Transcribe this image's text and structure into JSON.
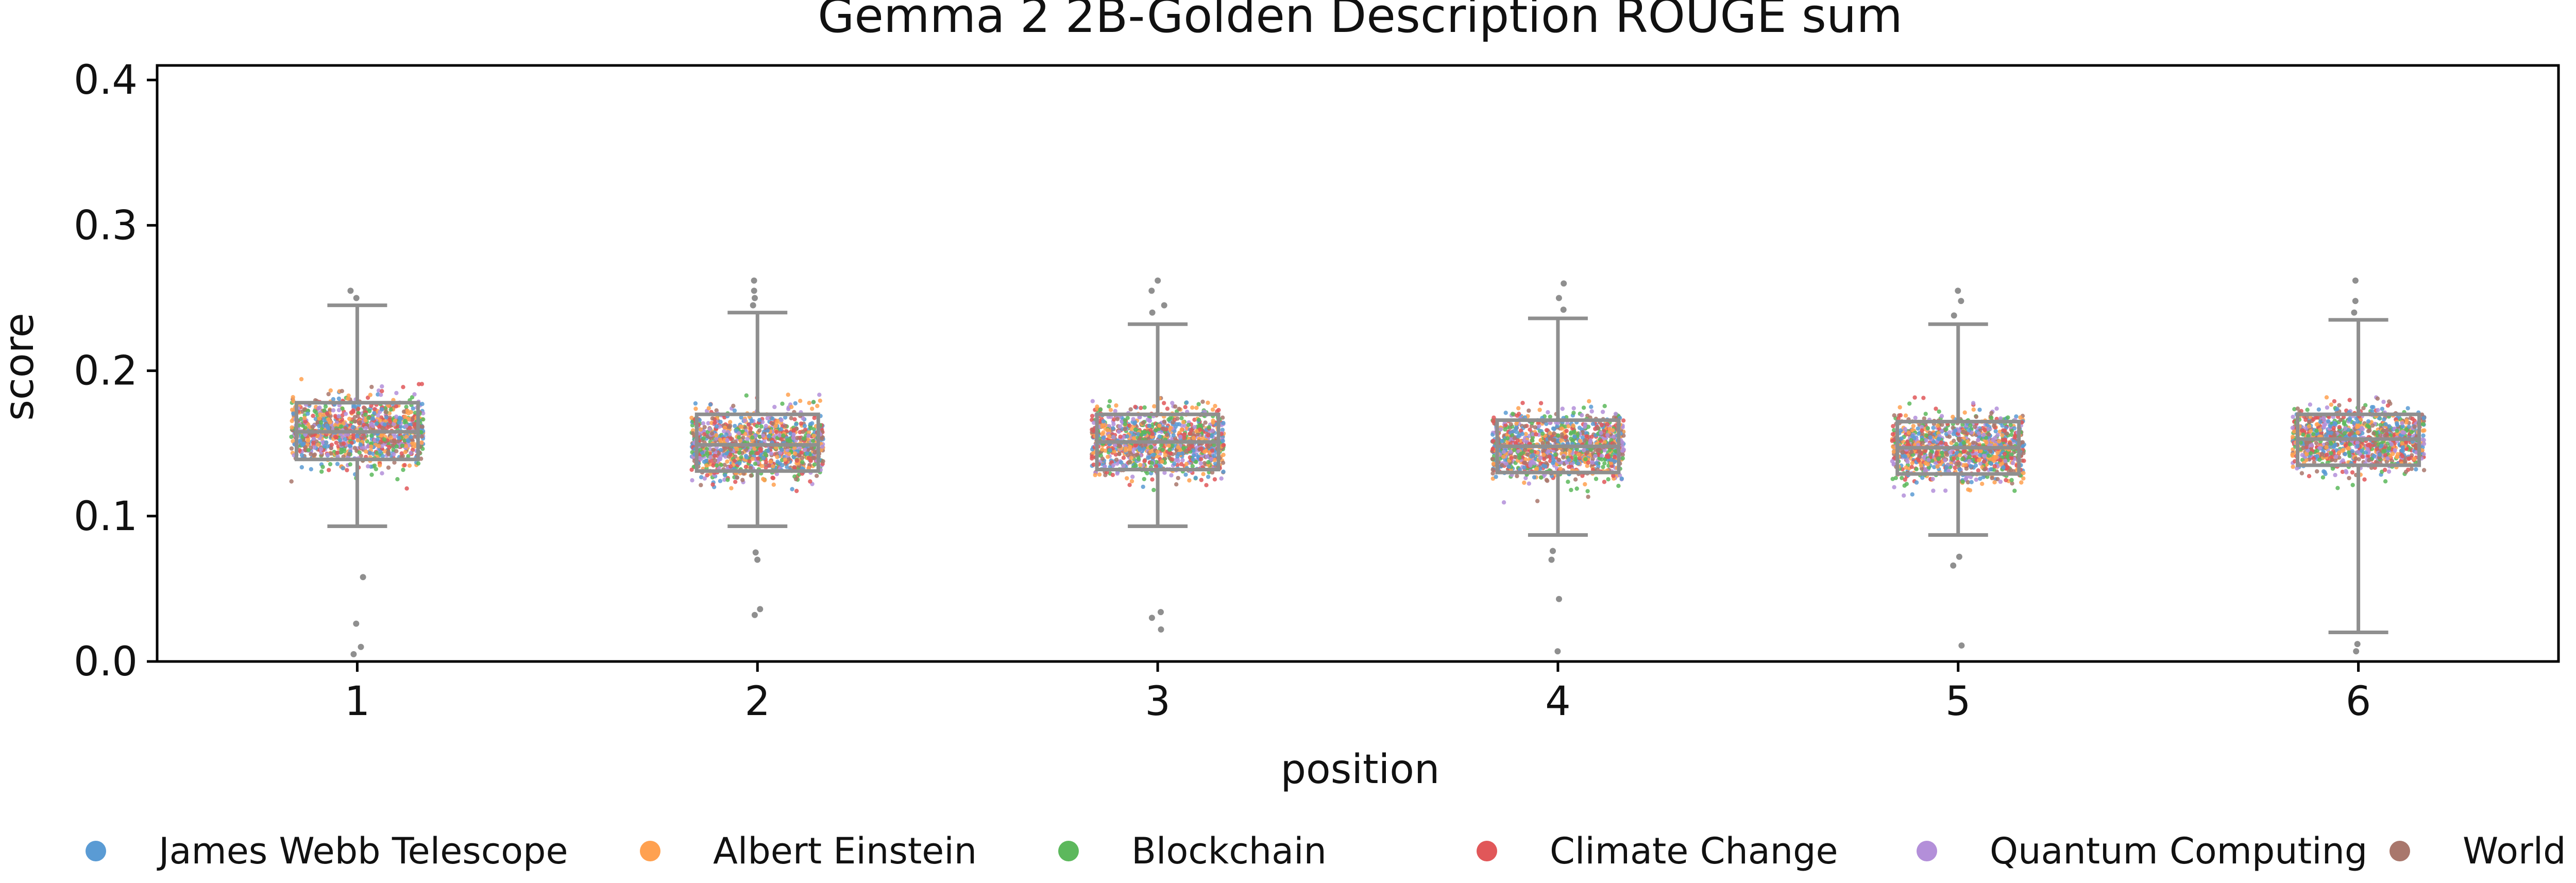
{
  "chart_data": {
    "type": "box",
    "title": "Gemma 2 2B-Golden Description ROUGE sum",
    "xlabel": "position",
    "ylabel": "score",
    "ylim": [
      0.0,
      0.41
    ],
    "yticks": [
      "0.0",
      "0.1",
      "0.2",
      "0.3",
      "0.4"
    ],
    "ytick_values": [
      0.0,
      0.1,
      0.2,
      0.3,
      0.4
    ],
    "categories": [
      "1",
      "2",
      "3",
      "4",
      "5",
      "6"
    ],
    "grid": false,
    "legend_position": "bottom",
    "series": [
      {
        "name": "James Webb Telescope",
        "color": "#5a9bd4"
      },
      {
        "name": "Albert Einstein",
        "color": "#ffa150"
      },
      {
        "name": "Blockchain",
        "color": "#5cb85c"
      },
      {
        "name": "Climate Change",
        "color": "#e15759"
      },
      {
        "name": "Quantum Computing",
        "color": "#b38fd9"
      },
      {
        "name": "World War II",
        "color": "#a9776c"
      }
    ],
    "boxes": [
      {
        "position": "1",
        "whisker_low": 0.093,
        "q1": 0.139,
        "median": 0.158,
        "q3": 0.178,
        "whisker_high": 0.245,
        "outliers": [
          0.005,
          0.01,
          0.026,
          0.058,
          0.25,
          0.255
        ]
      },
      {
        "position": "2",
        "whisker_low": 0.093,
        "q1": 0.131,
        "median": 0.149,
        "q3": 0.17,
        "whisker_high": 0.24,
        "outliers": [
          0.032,
          0.036,
          0.07,
          0.075,
          0.245,
          0.25,
          0.255,
          0.262
        ]
      },
      {
        "position": "3",
        "whisker_low": 0.093,
        "q1": 0.132,
        "median": 0.151,
        "q3": 0.17,
        "whisker_high": 0.232,
        "outliers": [
          0.022,
          0.03,
          0.034,
          0.24,
          0.245,
          0.255,
          0.262
        ]
      },
      {
        "position": "4",
        "whisker_low": 0.087,
        "q1": 0.13,
        "median": 0.148,
        "q3": 0.166,
        "whisker_high": 0.236,
        "outliers": [
          0.007,
          0.043,
          0.07,
          0.076,
          0.242,
          0.25,
          0.26
        ]
      },
      {
        "position": "5",
        "whisker_low": 0.087,
        "q1": 0.129,
        "median": 0.147,
        "q3": 0.165,
        "whisker_high": 0.232,
        "outliers": [
          0.011,
          0.066,
          0.072,
          0.238,
          0.248,
          0.255
        ]
      },
      {
        "position": "6",
        "whisker_low": 0.02,
        "q1": 0.135,
        "median": 0.153,
        "q3": 0.17,
        "whisker_high": 0.235,
        "outliers": [
          0.007,
          0.012,
          0.24,
          0.248,
          0.262
        ]
      }
    ]
  }
}
